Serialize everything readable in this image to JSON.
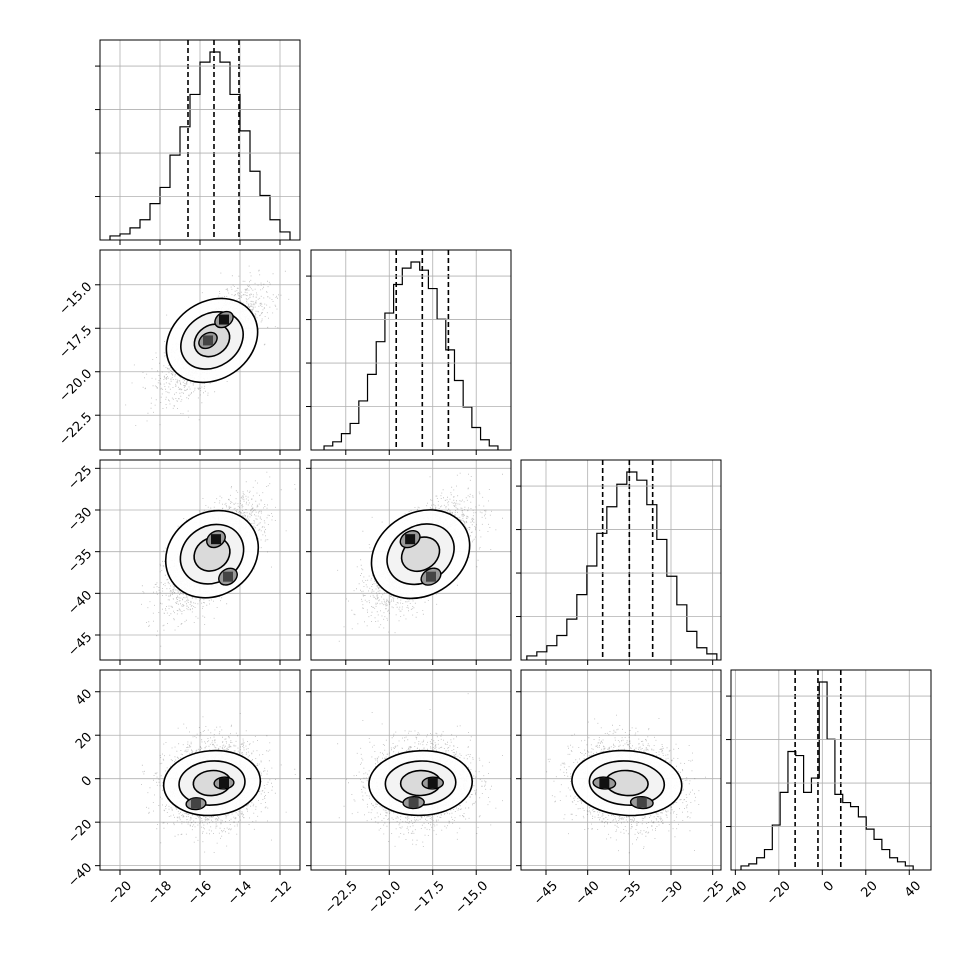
{
  "chart_data": {
    "type": "corner",
    "title": "",
    "grid": true,
    "colors": {
      "axes": "#000000",
      "grid": "#b0b0b0",
      "hist": "#000000",
      "quantile": "#000000",
      "contour": "#000000",
      "points": "#444444"
    },
    "parameters": [
      {
        "index": 0,
        "range": [
          -21,
          -11
        ],
        "ticks": [
          -20,
          -18,
          -16,
          -14,
          -12
        ],
        "tick_labels": [
          "−20",
          "−18",
          "−16",
          "−14",
          "−12"
        ],
        "mean": -15.4,
        "sigma": 1.1,
        "quantiles": [
          -16.6,
          -15.3,
          -14.05
        ]
      },
      {
        "index": 1,
        "range": [
          -24.5,
          -13.0
        ],
        "ticks": [
          -22.5,
          -20.0,
          -17.5,
          -15.0
        ],
        "tick_labels": [
          "−22.5",
          "−20.0",
          "−17.5",
          "−15.0"
        ],
        "mean": -18.2,
        "sigma": 1.35,
        "quantiles": [
          -19.6,
          -18.1,
          -16.6
        ]
      },
      {
        "index": 2,
        "range": [
          -48,
          -24
        ],
        "ticks": [
          -45,
          -40,
          -35,
          -30,
          -25
        ],
        "tick_labels": [
          "−45",
          "−40",
          "−35",
          "−30",
          "−25"
        ],
        "mean": -35.3,
        "sigma": 3.0,
        "quantiles": [
          -38.2,
          -35.0,
          -32.2
        ]
      },
      {
        "index": 3,
        "range": [
          -42,
          50
        ],
        "ticks": [
          -40,
          -20,
          0,
          20,
          40
        ],
        "tick_labels": [
          "−40",
          "−20",
          "0",
          "20",
          "40"
        ],
        "mean": -2.0,
        "sigma": 9.0,
        "quantiles": [
          -12.5,
          -2.0,
          8.5
        ]
      }
    ],
    "diag_hist": [
      {
        "param": 0,
        "bin_edges": [
          -20.5,
          -20,
          -19.5,
          -19,
          -18.5,
          -18,
          -17.5,
          -17,
          -16.5,
          -16,
          -15.5,
          -15,
          -14.5,
          -14,
          -13.5,
          -13,
          -12.5,
          -12,
          -11.5
        ],
        "counts": [
          2,
          3,
          6,
          10,
          18,
          26,
          42,
          56,
          72,
          88,
          93,
          88,
          72,
          54,
          34,
          22,
          10,
          4
        ]
      },
      {
        "param": 1,
        "bin_edges": [
          -23.75,
          -23.25,
          -22.75,
          -22.25,
          -21.75,
          -21.25,
          -20.75,
          -20.25,
          -19.75,
          -19.25,
          -18.75,
          -18.25,
          -17.75,
          -17.25,
          -16.75,
          -16.25,
          -15.75,
          -15.25,
          -14.75,
          -14.25,
          -13.75
        ],
        "counts": [
          2,
          4,
          8,
          13,
          24,
          37,
          53,
          67,
          81,
          89,
          92,
          88,
          79,
          64,
          49,
          34,
          21,
          11,
          5,
          2
        ]
      },
      {
        "param": 2,
        "bin_edges": [
          -47.3,
          -46.1,
          -44.9,
          -43.7,
          -42.5,
          -41.3,
          -40.1,
          -38.9,
          -37.7,
          -36.5,
          -35.3,
          -34.1,
          -32.9,
          -31.7,
          -30.5,
          -29.3,
          -28.1,
          -26.9,
          -25.7,
          -24.5
        ],
        "counts": [
          2,
          4,
          7,
          12,
          20,
          32,
          46,
          62,
          75,
          86,
          92,
          88,
          76,
          59,
          41,
          27,
          14,
          6,
          3
        ]
      },
      {
        "param": 3,
        "bin_edges": [
          -37.4,
          -33.8,
          -30.2,
          -26.6,
          -23.0,
          -19.4,
          -15.8,
          -12.2,
          -8.6,
          -5.0,
          -1.4,
          2.2,
          5.8,
          9.4,
          13.0,
          16.6,
          20.2,
          23.8,
          27.4,
          31.0,
          34.6,
          38.2,
          41.8
        ],
        "counts": [
          2,
          3,
          6,
          10,
          22,
          38,
          58,
          56,
          38,
          45,
          92,
          64,
          37,
          33,
          31,
          26,
          20,
          15,
          10,
          6,
          4,
          2
        ]
      }
    ],
    "panels": [
      {
        "row": 1,
        "col": 0,
        "mean": [
          -15.4,
          -18.2
        ],
        "sd": [
          1.1,
          1.35
        ],
        "rho": 0.72,
        "peaks": [
          [
            -14.8,
            -17.0
          ],
          [
            -15.6,
            -18.2
          ]
        ]
      },
      {
        "row": 2,
        "col": 0,
        "mean": [
          -15.4,
          -35.3
        ],
        "sd": [
          1.1,
          3.0
        ],
        "rho": 0.68,
        "peaks": [
          [
            -15.2,
            -33.5
          ],
          [
            -14.6,
            -38.0
          ]
        ]
      },
      {
        "row": 2,
        "col": 1,
        "mean": [
          -18.2,
          -35.3
        ],
        "sd": [
          1.35,
          3.0
        ],
        "rho": 0.65,
        "peaks": [
          [
            -18.8,
            -33.5
          ],
          [
            -17.6,
            -38.0
          ]
        ]
      },
      {
        "row": 3,
        "col": 0,
        "mean": [
          -15.4,
          -2.0
        ],
        "sd": [
          1.1,
          9.0
        ],
        "rho": 0.1,
        "peaks": [
          [
            -14.8,
            -2.0
          ],
          [
            -16.2,
            -11.5
          ]
        ]
      },
      {
        "row": 3,
        "col": 1,
        "mean": [
          -18.2,
          -2.0
        ],
        "sd": [
          1.35,
          9.0
        ],
        "rho": 0.05,
        "peaks": [
          [
            -17.5,
            -2.0
          ],
          [
            -18.6,
            -11.0
          ]
        ]
      },
      {
        "row": 3,
        "col": 2,
        "mean": [
          -35.3,
          -2.0
        ],
        "sd": [
          3.0,
          9.0
        ],
        "rho": -0.1,
        "peaks": [
          [
            -38.0,
            -2.0
          ],
          [
            -33.5,
            -11.0
          ]
        ]
      }
    ]
  }
}
